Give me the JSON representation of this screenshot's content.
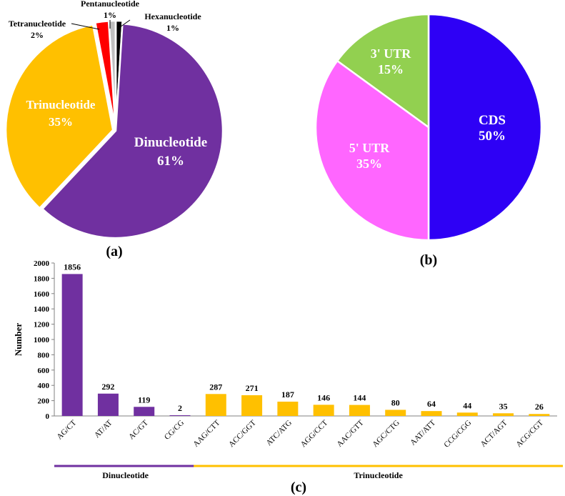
{
  "chart_data": [
    {
      "id": "a",
      "type": "pie",
      "panel_label": "(a)",
      "slices": [
        {
          "label": "Dinucleotide",
          "value": 61,
          "pct_label": "61%",
          "color": "#7030A0",
          "label_color": "#FFFFFF"
        },
        {
          "label": "Trinucleotide",
          "value": 35,
          "pct_label": "35%",
          "color": "#FFC000",
          "label_color": "#FFFFFF"
        },
        {
          "label": "Tetranucleotide",
          "value": 2,
          "pct_label": "2%",
          "color": "#FF0000",
          "label_color": "#000000"
        },
        {
          "label": "Pentanucleotide",
          "value": 1,
          "pct_label": "1%",
          "color": "#BFBFBF",
          "label_color": "#000000"
        },
        {
          "label": "Hexanucleotide",
          "value": 1,
          "pct_label": "1%",
          "color": "#000000",
          "label_color": "#000000"
        }
      ]
    },
    {
      "id": "b",
      "type": "pie",
      "panel_label": "(b)",
      "slices": [
        {
          "label": "CDS",
          "value": 50,
          "pct_label": "50%",
          "color": "#2E00F5",
          "label_color": "#FFFFFF"
        },
        {
          "label": "5' UTR",
          "value": 35,
          "pct_label": "35%",
          "color": "#FF66FF",
          "label_color": "#FFFFFF"
        },
        {
          "label": "3' UTR",
          "value": 15,
          "pct_label": "15%",
          "color": "#92D050",
          "label_color": "#FFFFFF"
        }
      ]
    },
    {
      "id": "c",
      "type": "bar",
      "panel_label": "(c)",
      "ylabel": "Number",
      "ylim": [
        0,
        2000
      ],
      "yticks": [
        0,
        200,
        400,
        600,
        800,
        1000,
        1200,
        1400,
        1600,
        1800,
        2000
      ],
      "categories": [
        "AG/CT",
        "AT/AT",
        "AC/GT",
        "CG/CG",
        "AAG/CTT",
        "ACC/GGT",
        "ATC/ATG",
        "AGG/CCT",
        "AAC/GTT",
        "AGC/CTG",
        "AAT/ATT",
        "CCG/CGG",
        "ACT/AGT",
        "ACG/CGT"
      ],
      "values": [
        1856,
        292,
        119,
        2,
        287,
        271,
        187,
        146,
        144,
        80,
        64,
        44,
        35,
        26
      ],
      "groups": [
        {
          "name": "Dinucleotide",
          "start": 0,
          "end": 3,
          "color": "#7030A0"
        },
        {
          "name": "Trinucleotide",
          "start": 4,
          "end": 13,
          "color": "#FFC000"
        }
      ]
    }
  ]
}
